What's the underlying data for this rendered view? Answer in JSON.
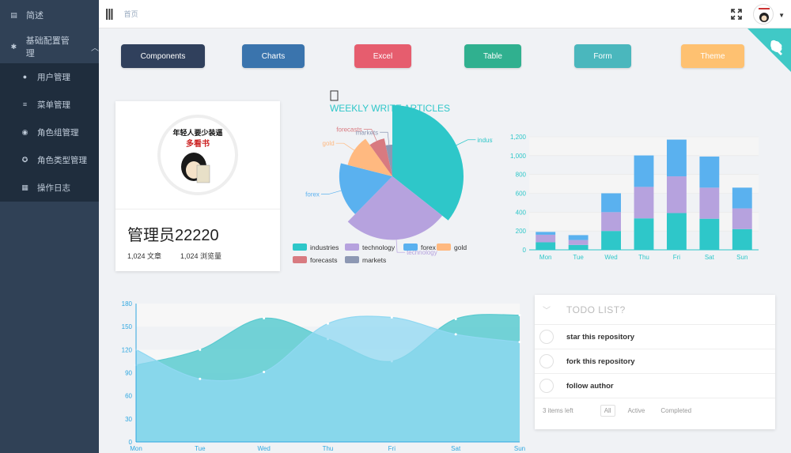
{
  "sidebar": {
    "top": {
      "label": "简述",
      "icon": "document-icon"
    },
    "group": {
      "label": "基础配置管理",
      "icon": "gear-icon"
    },
    "items": [
      {
        "label": "用户管理",
        "icon": "user-icon"
      },
      {
        "label": "菜单管理",
        "icon": "list-icon"
      },
      {
        "label": "角色组管理",
        "icon": "user-group-icon"
      },
      {
        "label": "角色类型管理",
        "icon": "users-icon"
      },
      {
        "label": "操作日志",
        "icon": "log-icon"
      }
    ]
  },
  "header": {
    "breadcrumb": "首页"
  },
  "buttons": [
    {
      "label": "Components",
      "color": "#30405c"
    },
    {
      "label": "Charts",
      "color": "#3a74ad"
    },
    {
      "label": "Excel",
      "color": "#e65d6e"
    },
    {
      "label": "Table",
      "color": "#30b08f"
    },
    {
      "label": "Form",
      "color": "#4ab7bd"
    },
    {
      "label": "Theme",
      "color": "#fec171"
    }
  ],
  "avatar_text": {
    "line1": "年轻人要少装逼",
    "line2": "多看书"
  },
  "profile": {
    "name": "管理员22220",
    "articles": "1,024 文章",
    "views": "1,024 浏览量"
  },
  "todo": {
    "title": "TODO LIST?",
    "items": [
      "star this repository",
      "fork this repository",
      "follow author"
    ],
    "count": "3 items left",
    "filters": [
      "All",
      "Active",
      "Completed"
    ]
  },
  "chart_data": [
    {
      "type": "pie",
      "title": "WEEKLY WRITE ARTICLES",
      "labels": [
        "industries",
        "technology",
        "forex",
        "gold",
        "forecasts",
        "markets"
      ],
      "values": [
        320,
        240,
        149,
        100,
        59,
        30
      ],
      "colors": [
        "#2ec7c9",
        "#b6a2de",
        "#5ab1ef",
        "#ffb980",
        "#d87a80",
        "#8d98b3"
      ]
    },
    {
      "type": "bar",
      "stacked": true,
      "categories": [
        "Mon",
        "Tue",
        "Wed",
        "Thu",
        "Fri",
        "Sat",
        "Sun"
      ],
      "ylim": [
        0,
        1200
      ],
      "yticks": [
        "0",
        "200",
        "400",
        "600",
        "800",
        "1,000",
        "1,200"
      ],
      "series": [
        {
          "values": [
            80,
            52,
            200,
            334,
            390,
            330,
            220
          ],
          "color": "#2ec7c9"
        },
        {
          "values": [
            80,
            52,
            200,
            334,
            390,
            330,
            220
          ],
          "color": "#b6a2de"
        },
        {
          "values": [
            30,
            52,
            200,
            334,
            390,
            330,
            220
          ],
          "color": "#5ab1ef"
        }
      ]
    },
    {
      "type": "area",
      "categories": [
        "Mon",
        "Tue",
        "Wed",
        "Thu",
        "Fri",
        "Sat",
        "Sun"
      ],
      "ylim": [
        0,
        180
      ],
      "yticks": [
        "0",
        "30",
        "60",
        "90",
        "120",
        "150",
        "180"
      ],
      "series": [
        {
          "values": [
            120,
            82,
            91,
            154,
            162,
            140,
            130
          ],
          "color": "#90d8f2"
        },
        {
          "values": [
            100,
            120,
            161,
            134,
            105,
            160,
            165
          ],
          "color": "#5bcbd0"
        }
      ]
    }
  ]
}
